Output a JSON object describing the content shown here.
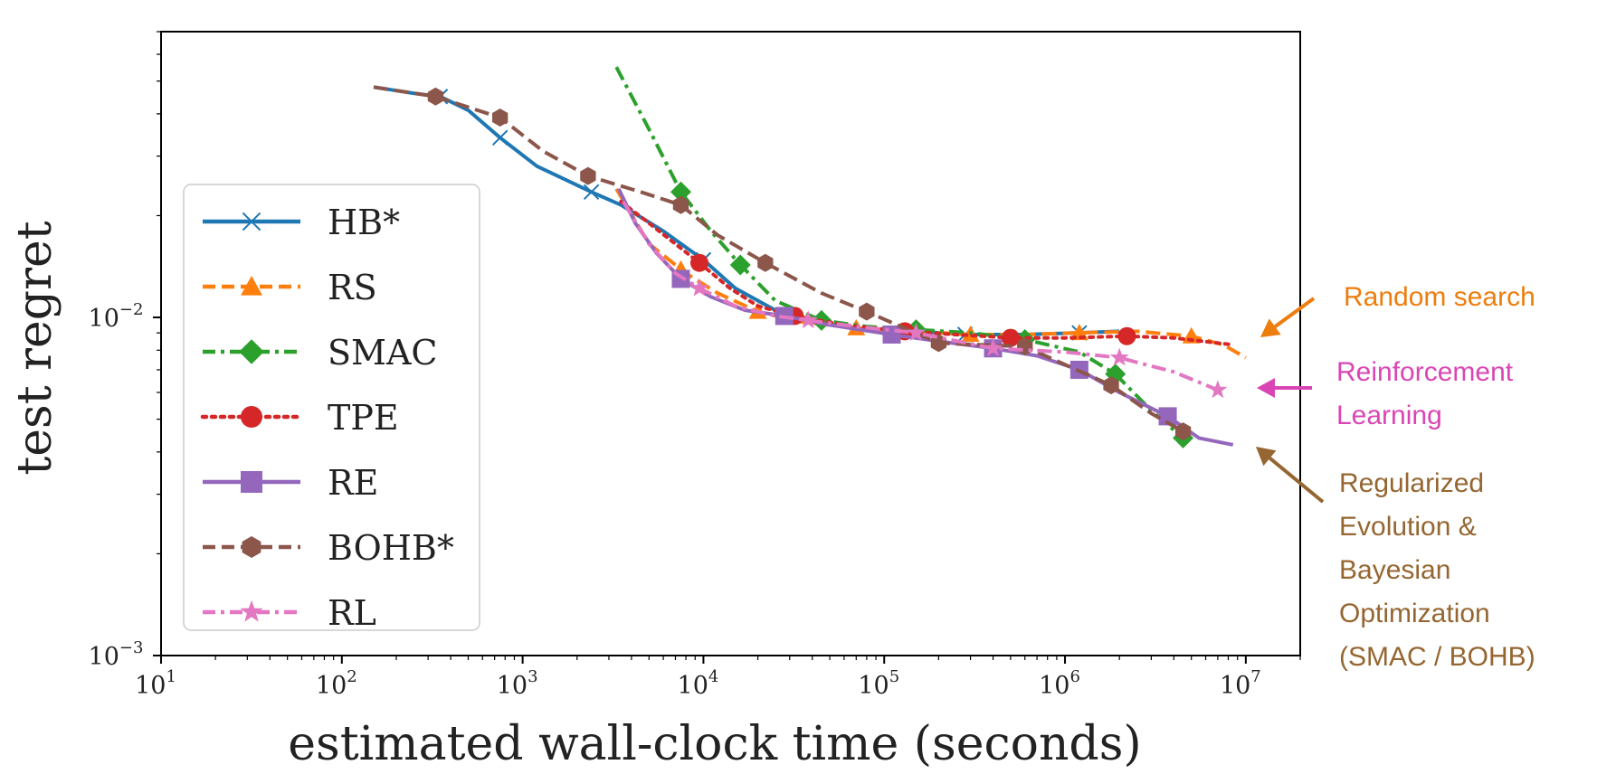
{
  "chart_data": {
    "type": "line",
    "xlabel": "estimated wall-clock time (seconds)",
    "ylabel": "test regret",
    "xscale": "log",
    "yscale": "log",
    "xlim": [
      10,
      20000000
    ],
    "ylim": [
      0.001,
      0.07
    ],
    "x_ticks": [
      {
        "value": 10,
        "base": "10",
        "exp": "1"
      },
      {
        "value": 100,
        "base": "10",
        "exp": "2"
      },
      {
        "value": 1000,
        "base": "10",
        "exp": "3"
      },
      {
        "value": 10000,
        "base": "10",
        "exp": "4"
      },
      {
        "value": 100000,
        "base": "10",
        "exp": "5"
      },
      {
        "value": 1000000,
        "base": "10",
        "exp": "6"
      },
      {
        "value": 10000000,
        "base": "10",
        "exp": "7"
      }
    ],
    "y_ticks": [
      {
        "value": 0.001,
        "base": "10",
        "exp": "−3"
      },
      {
        "value": 0.01,
        "base": "10",
        "exp": "−2"
      }
    ],
    "grid": false,
    "legend_position": "center-left",
    "series": [
      {
        "name": "HB*",
        "color": "#1f77b4",
        "dash": "solid",
        "marker": "x",
        "x": [
          150,
          250,
          350,
          500,
          750,
          1200,
          2400,
          3500,
          6000,
          10000,
          15000,
          25000,
          40000,
          70000,
          150000,
          280000,
          600000,
          1200000,
          2000000
        ],
        "y": [
          0.048,
          0.046,
          0.045,
          0.041,
          0.034,
          0.028,
          0.0235,
          0.0215,
          0.018,
          0.0148,
          0.0122,
          0.0105,
          0.0097,
          0.0093,
          0.0091,
          0.0089,
          0.0089,
          0.009,
          0.0091
        ],
        "markers_x": [
          350,
          750,
          2400,
          10000,
          280000,
          1200000
        ]
      },
      {
        "name": "RS",
        "color": "#ff7f0e",
        "dash": "dashed",
        "marker": "triangle",
        "x": [
          3300,
          5000,
          8000,
          12000,
          20000,
          35000,
          70000,
          150000,
          300000,
          600000,
          1200000,
          2500000,
          5000000,
          7500000,
          10000000
        ],
        "y": [
          0.024,
          0.0165,
          0.0135,
          0.0118,
          0.0104,
          0.0097,
          0.0093,
          0.0091,
          0.0089,
          0.0089,
          0.009,
          0.0091,
          0.0088,
          0.0083,
          0.0076
        ],
        "markers_x": [
          7500,
          20000,
          70000,
          300000,
          1200000,
          5000000
        ]
      },
      {
        "name": "SMAC",
        "color": "#2ca02c",
        "dash": "dashdot",
        "marker": "diamond",
        "x": [
          3300,
          5000,
          7500,
          11000,
          16000,
          25000,
          45000,
          80000,
          150000,
          300000,
          600000,
          1200000,
          1900000,
          3000000,
          4500000
        ],
        "y": [
          0.055,
          0.036,
          0.0235,
          0.018,
          0.0143,
          0.0112,
          0.0098,
          0.0094,
          0.0092,
          0.009,
          0.0086,
          0.0079,
          0.0068,
          0.0053,
          0.0044
        ],
        "markers_x": [
          7500,
          16000,
          45000,
          150000,
          600000,
          1900000,
          4500000
        ]
      },
      {
        "name": "TPE",
        "color": "#d62728",
        "dash": "dotted",
        "marker": "circle",
        "x": [
          3500,
          5000,
          9500,
          14000,
          20000,
          32000,
          60000,
          130000,
          250000,
          500000,
          1000000,
          2200000,
          4000000,
          8500000
        ],
        "y": [
          0.022,
          0.019,
          0.0145,
          0.0122,
          0.0108,
          0.0101,
          0.0095,
          0.0091,
          0.0089,
          0.0087,
          0.0087,
          0.0088,
          0.0087,
          0.0083
        ],
        "markers_x": [
          9500,
          32000,
          130000,
          500000,
          2200000
        ]
      },
      {
        "name": "RE",
        "color": "#9467bd",
        "dash": "solid",
        "marker": "square",
        "x": [
          3400,
          4200,
          5500,
          7500,
          11000,
          17000,
          28000,
          50000,
          110000,
          200000,
          400000,
          700000,
          1200000,
          2000000,
          3700000,
          5500000,
          8500000
        ],
        "y": [
          0.024,
          0.019,
          0.0155,
          0.013,
          0.0115,
          0.0105,
          0.0101,
          0.0095,
          0.0089,
          0.0085,
          0.0081,
          0.0077,
          0.007,
          0.006,
          0.0051,
          0.0044,
          0.0042
        ],
        "markers_x": [
          7500,
          28000,
          110000,
          400000,
          1200000,
          3700000
        ]
      },
      {
        "name": "BOHB*",
        "color": "#8c564b",
        "dash": "dashed",
        "marker": "hexagon",
        "x": [
          150,
          330,
          750,
          1300,
          2300,
          4500,
          7500,
          12000,
          22000,
          45000,
          80000,
          200000,
          600000,
          1800000,
          3000000,
          4500000
        ],
        "y": [
          0.048,
          0.045,
          0.039,
          0.031,
          0.0262,
          0.0235,
          0.0215,
          0.0175,
          0.0145,
          0.0118,
          0.0104,
          0.0084,
          0.0082,
          0.0063,
          0.0052,
          0.0046
        ],
        "markers_x": [
          330,
          750,
          2300,
          7500,
          22000,
          80000,
          200000,
          600000,
          1800000,
          4500000
        ]
      },
      {
        "name": "RL",
        "color": "#e377c2",
        "dash": "dashdot",
        "marker": "star",
        "x": [
          3600,
          5000,
          7000,
          9500,
          15000,
          25000,
          38000,
          70000,
          150000,
          400000,
          1000000,
          2000000,
          4000000,
          7000000
        ],
        "y": [
          0.022,
          0.0165,
          0.0135,
          0.0122,
          0.0108,
          0.0101,
          0.0098,
          0.0094,
          0.009,
          0.0081,
          0.0079,
          0.0076,
          0.0069,
          0.0061
        ],
        "markers_x": [
          9500,
          38000,
          150000,
          400000,
          2000000,
          7000000
        ]
      }
    ]
  },
  "annotations": [
    {
      "text": "Random search",
      "color": "#ed7d0d"
    },
    {
      "text": "Reinforcement Learning",
      "color": "#d946b4"
    },
    {
      "text": "Regularized Evolution & Bayesian Optimization (SMAC / BOHB)",
      "color": "#956631"
    }
  ]
}
